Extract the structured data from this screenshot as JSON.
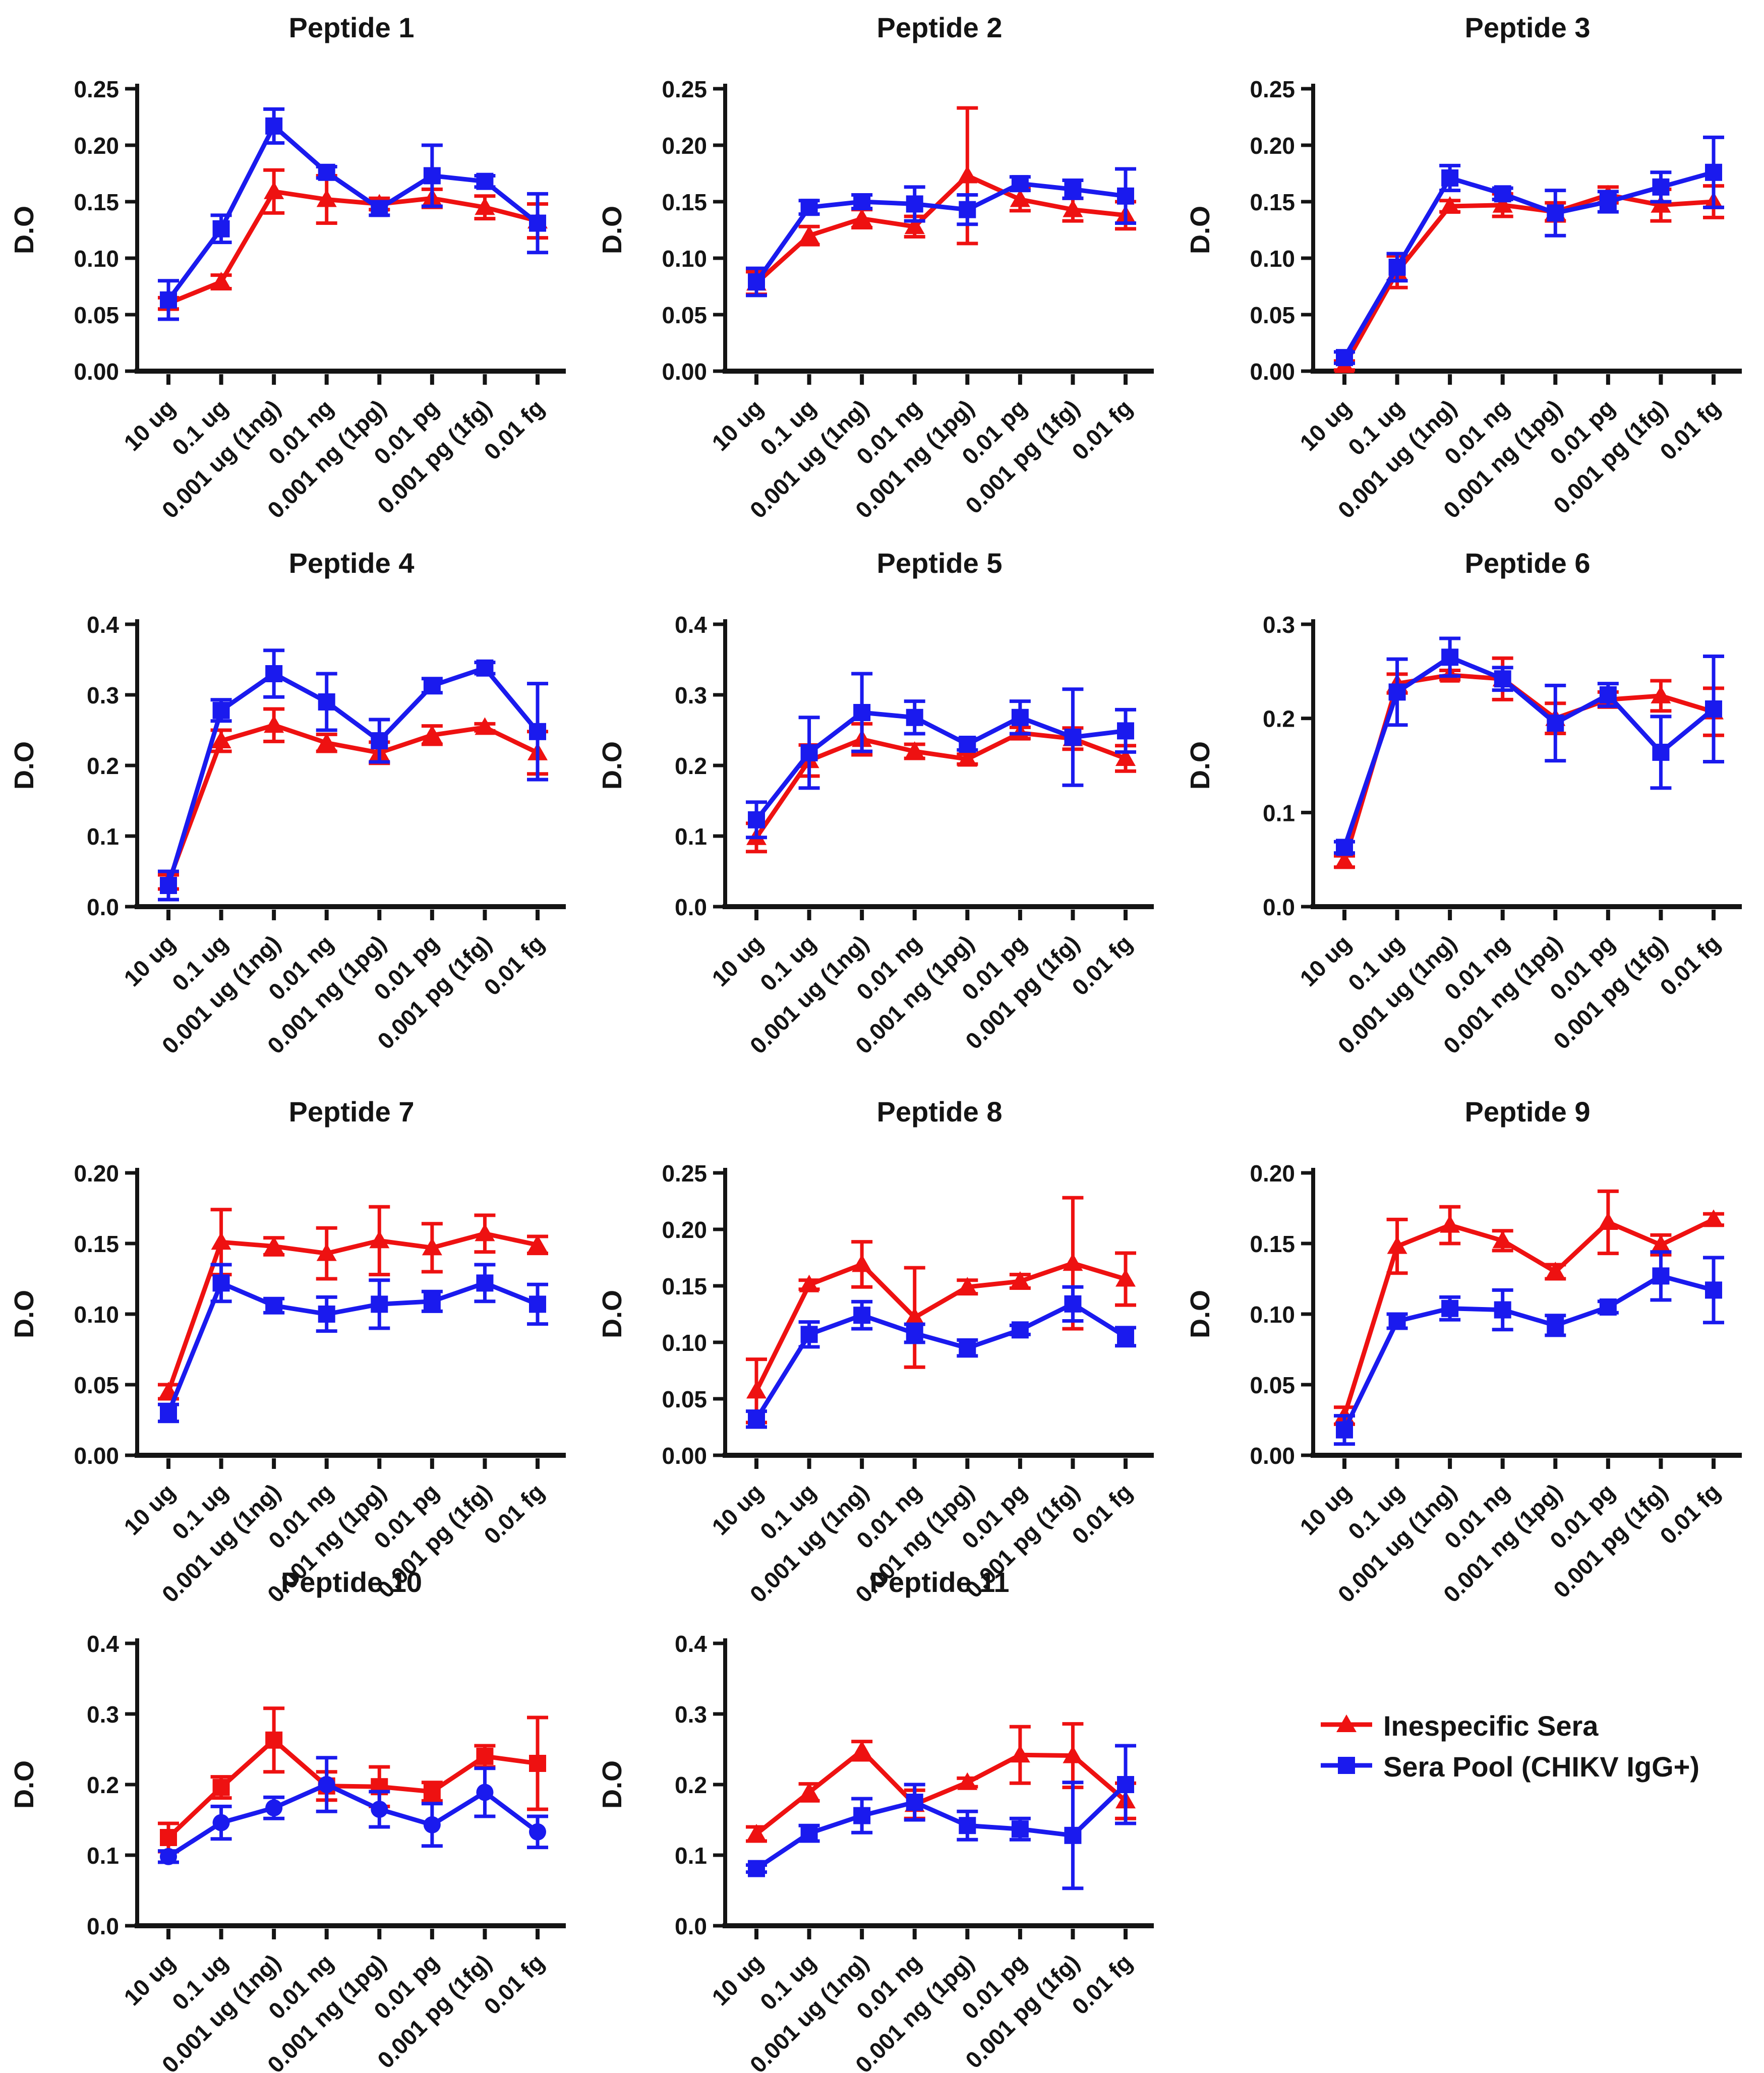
{
  "figure": {
    "ylabel": "D.O"
  },
  "legend": {
    "items": [
      {
        "label": "Inespecific Sera",
        "color": "#ee1111",
        "marker": "triangle"
      },
      {
        "label": "Sera Pool (CHIKV IgG+)",
        "color": "#1a1aee",
        "marker": "square"
      }
    ]
  },
  "chart_data": {
    "type": "line",
    "xlabel": "",
    "ylabel": "D.O",
    "grid": false,
    "legend_position": "bottom-right",
    "categories": [
      "10 ug",
      "0.1 ug",
      "0.001 ug (1ng)",
      "0.01 ng",
      "0.001 ng (1pg)",
      "0.01 pg",
      "0.001 pg (1fg)",
      "0.01 fg"
    ],
    "charts": [
      {
        "title": "Peptide 1",
        "ylim": [
          0,
          0.25
        ],
        "ystep": 0.05,
        "ydecimals": 2,
        "series": [
          {
            "name": "Inespecific Sera",
            "color": "#ee1111",
            "marker": "triangle",
            "values": [
              0.06,
              0.079,
              0.159,
              0.152,
              0.148,
              0.153,
              0.145,
              0.133
            ],
            "errors": [
              0.005,
              0.006,
              0.019,
              0.021,
              0.005,
              0.008,
              0.01,
              0.015
            ]
          },
          {
            "name": "Sera Pool (CHIKV IgG+)",
            "color": "#1a1aee",
            "marker": "square",
            "values": [
              0.063,
              0.126,
              0.217,
              0.176,
              0.144,
              0.173,
              0.168,
              0.131
            ],
            "errors": [
              0.017,
              0.012,
              0.015,
              0.005,
              0.006,
              0.027,
              0.005,
              0.026
            ]
          }
        ]
      },
      {
        "title": "Peptide 2",
        "ylim": [
          0,
          0.25
        ],
        "ystep": 0.05,
        "ydecimals": 2,
        "series": [
          {
            "name": "Inespecific Sera",
            "color": "#ee1111",
            "marker": "triangle",
            "values": [
              0.078,
              0.12,
              0.135,
              0.128,
              0.173,
              0.152,
              0.143,
              0.138
            ],
            "errors": [
              0.01,
              0.008,
              0.008,
              0.009,
              0.06,
              0.01,
              0.01,
              0.012
            ]
          },
          {
            "name": "Sera Pool (CHIKV IgG+)",
            "color": "#1a1aee",
            "marker": "square",
            "values": [
              0.079,
              0.145,
              0.15,
              0.148,
              0.143,
              0.166,
              0.161,
              0.155
            ],
            "errors": [
              0.012,
              0.006,
              0.006,
              0.015,
              0.013,
              0.006,
              0.008,
              0.024
            ]
          }
        ]
      },
      {
        "title": "Peptide 3",
        "ylim": [
          0,
          0.25
        ],
        "ystep": 0.05,
        "ydecimals": 2,
        "series": [
          {
            "name": "Inespecific Sera",
            "color": "#ee1111",
            "marker": "triangle",
            "values": [
              0.005,
              0.088,
              0.146,
              0.147,
              0.141,
              0.156,
              0.147,
              0.15
            ],
            "errors": [
              0.004,
              0.014,
              0.005,
              0.01,
              0.008,
              0.007,
              0.014,
              0.014
            ]
          },
          {
            "name": "Sera Pool (CHIKV IgG+)",
            "color": "#1a1aee",
            "marker": "square",
            "values": [
              0.012,
              0.092,
              0.171,
              0.157,
              0.14,
              0.15,
              0.163,
              0.176
            ],
            "errors": [
              0.005,
              0.012,
              0.011,
              0.005,
              0.02,
              0.009,
              0.013,
              0.031
            ]
          }
        ]
      },
      {
        "title": "Peptide 4",
        "ylim": [
          0,
          0.4
        ],
        "ystep": 0.1,
        "ydecimals": 1,
        "series": [
          {
            "name": "Inespecific Sera",
            "color": "#ee1111",
            "marker": "triangle",
            "values": [
              0.035,
              0.235,
              0.257,
              0.232,
              0.218,
              0.243,
              0.254,
              0.218
            ],
            "errors": [
              0.01,
              0.015,
              0.023,
              0.012,
              0.015,
              0.013,
              0.005,
              0.03
            ]
          },
          {
            "name": "Sera Pool (CHIKV IgG+)",
            "color": "#1a1aee",
            "marker": "square",
            "values": [
              0.03,
              0.278,
              0.33,
              0.29,
              0.235,
              0.313,
              0.338,
              0.248
            ],
            "errors": [
              0.02,
              0.015,
              0.033,
              0.04,
              0.03,
              0.01,
              0.008,
              0.068
            ]
          }
        ]
      },
      {
        "title": "Peptide 5",
        "ylim": [
          0,
          0.4
        ],
        "ystep": 0.1,
        "ydecimals": 1,
        "series": [
          {
            "name": "Inespecific Sera",
            "color": "#ee1111",
            "marker": "triangle",
            "values": [
              0.098,
              0.207,
              0.237,
              0.22,
              0.209,
              0.246,
              0.238,
              0.21
            ],
            "errors": [
              0.02,
              0.022,
              0.022,
              0.01,
              0.007,
              0.008,
              0.015,
              0.018
            ]
          },
          {
            "name": "Sera Pool (CHIKV IgG+)",
            "color": "#1a1aee",
            "marker": "square",
            "values": [
              0.123,
              0.218,
              0.275,
              0.268,
              0.23,
              0.268,
              0.24,
              0.249
            ],
            "errors": [
              0.025,
              0.05,
              0.055,
              0.023,
              0.008,
              0.023,
              0.068,
              0.03
            ]
          }
        ]
      },
      {
        "title": "Peptide 6",
        "ylim": [
          0,
          0.3
        ],
        "ystep": 0.1,
        "ydecimals": 1,
        "series": [
          {
            "name": "Inespecific Sera",
            "color": "#ee1111",
            "marker": "triangle",
            "values": [
              0.048,
              0.237,
              0.246,
              0.242,
              0.2,
              0.22,
              0.224,
              0.207
            ],
            "errors": [
              0.006,
              0.01,
              0.005,
              0.022,
              0.016,
              0.008,
              0.016,
              0.025
            ]
          },
          {
            "name": "Sera Pool (CHIKV IgG+)",
            "color": "#1a1aee",
            "marker": "square",
            "values": [
              0.063,
              0.228,
              0.265,
              0.242,
              0.195,
              0.225,
              0.164,
              0.21
            ],
            "errors": [
              0.006,
              0.035,
              0.02,
              0.012,
              0.04,
              0.012,
              0.038,
              0.056
            ]
          }
        ]
      },
      {
        "title": "Peptide 7",
        "ylim": [
          0,
          0.2
        ],
        "ystep": 0.05,
        "ydecimals": 2,
        "series": [
          {
            "name": "Inespecific Sera",
            "color": "#ee1111",
            "marker": "triangle",
            "values": [
              0.045,
              0.151,
              0.148,
              0.143,
              0.152,
              0.147,
              0.157,
              0.149
            ],
            "errors": [
              0.005,
              0.023,
              0.006,
              0.018,
              0.024,
              0.017,
              0.013,
              0.006
            ]
          },
          {
            "name": "Sera Pool (CHIKV IgG+)",
            "color": "#1a1aee",
            "marker": "square",
            "values": [
              0.03,
              0.122,
              0.106,
              0.1,
              0.107,
              0.109,
              0.122,
              0.107
            ],
            "errors": [
              0.006,
              0.013,
              0.005,
              0.012,
              0.017,
              0.007,
              0.013,
              0.014
            ]
          }
        ]
      },
      {
        "title": "Peptide 8",
        "ylim": [
          0,
          0.25
        ],
        "ystep": 0.05,
        "ydecimals": 2,
        "series": [
          {
            "name": "Inespecific Sera",
            "color": "#ee1111",
            "marker": "triangle",
            "values": [
              0.057,
              0.151,
              0.169,
              0.122,
              0.149,
              0.154,
              0.17,
              0.156
            ],
            "errors": [
              0.028,
              0.004,
              0.02,
              0.044,
              0.006,
              0.006,
              0.058,
              0.023
            ]
          },
          {
            "name": "Sera Pool (CHIKV IgG+)",
            "color": "#1a1aee",
            "marker": "square",
            "values": [
              0.032,
              0.107,
              0.124,
              0.108,
              0.095,
              0.111,
              0.134,
              0.105
            ],
            "errors": [
              0.007,
              0.011,
              0.012,
              0.008,
              0.007,
              0.004,
              0.015,
              0.008
            ]
          }
        ]
      },
      {
        "title": "Peptide 9",
        "ylim": [
          0,
          0.2
        ],
        "ystep": 0.05,
        "ydecimals": 2,
        "series": [
          {
            "name": "Inespecific Sera",
            "color": "#ee1111",
            "marker": "triangle",
            "values": [
              0.028,
              0.148,
              0.163,
              0.152,
              0.13,
              0.165,
              0.149,
              0.167
            ],
            "errors": [
              0.006,
              0.019,
              0.013,
              0.007,
              0.005,
              0.022,
              0.007,
              0.004
            ]
          },
          {
            "name": "Sera Pool (CHIKV IgG+)",
            "color": "#1a1aee",
            "marker": "square",
            "values": [
              0.018,
              0.095,
              0.104,
              0.103,
              0.092,
              0.105,
              0.127,
              0.117
            ],
            "errors": [
              0.01,
              0.005,
              0.008,
              0.014,
              0.007,
              0.004,
              0.017,
              0.023
            ]
          }
        ]
      },
      {
        "title": "Peptide 10",
        "ylim": [
          0,
          0.4
        ],
        "ystep": 0.1,
        "ydecimals": 1,
        "series": [
          {
            "name": "Inespecific Sera",
            "color": "#ee1111",
            "marker": "square",
            "values": [
              0.125,
              0.196,
              0.263,
              0.198,
              0.197,
              0.19,
              0.24,
              0.23
            ],
            "errors": [
              0.02,
              0.015,
              0.045,
              0.02,
              0.028,
              0.013,
              0.015,
              0.065
            ]
          },
          {
            "name": "Sera Pool (CHIKV IgG+)",
            "color": "#1a1aee",
            "marker": "circle",
            "values": [
              0.098,
              0.146,
              0.167,
              0.2,
              0.165,
              0.143,
              0.189,
              0.133
            ],
            "errors": [
              0.008,
              0.023,
              0.015,
              0.038,
              0.025,
              0.03,
              0.034,
              0.022
            ]
          }
        ]
      },
      {
        "title": "Peptide 11",
        "ylim": [
          0,
          0.4
        ],
        "ystep": 0.1,
        "ydecimals": 1,
        "series": [
          {
            "name": "Inespecific Sera",
            "color": "#ee1111",
            "marker": "triangle",
            "values": [
              0.13,
              0.189,
              0.248,
              0.172,
              0.203,
              0.242,
              0.241,
              0.177
            ],
            "errors": [
              0.01,
              0.012,
              0.013,
              0.02,
              0.006,
              0.04,
              0.045,
              0.025
            ]
          },
          {
            "name": "Sera Pool (CHIKV IgG+)",
            "color": "#1a1aee",
            "marker": "square",
            "values": [
              0.081,
              0.131,
              0.156,
              0.175,
              0.142,
              0.137,
              0.128,
              0.2
            ],
            "errors": [
              0.005,
              0.011,
              0.024,
              0.025,
              0.02,
              0.015,
              0.075,
              0.055
            ]
          }
        ]
      }
    ]
  }
}
